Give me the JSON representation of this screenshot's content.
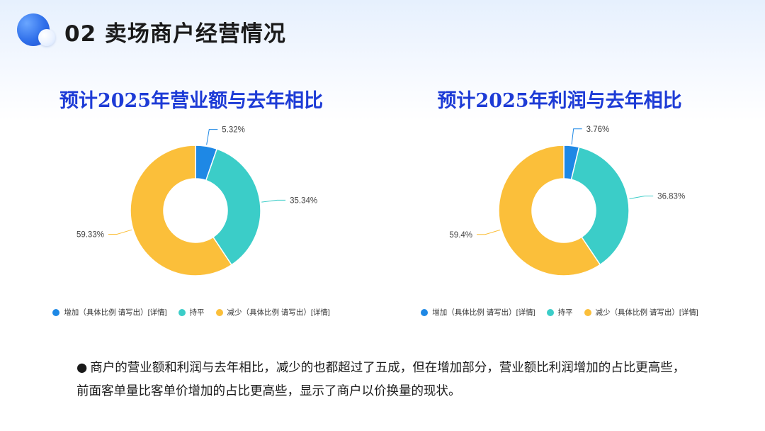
{
  "header": {
    "title": "02 卖场商户经营情况"
  },
  "colors": {
    "increase": "#1e88e5",
    "flat": "#3bcdc8",
    "decrease": "#fbbf3a",
    "title_blue": "#1d3bd6"
  },
  "chart_data": [
    {
      "type": "pie",
      "donut": true,
      "title": "预计2025年营业额与去年相比",
      "categories": [
        "增加（具体比例 请写出）[详情]",
        "持平",
        "减少（具体比例 请写出）[详情]"
      ],
      "values": [
        5.32,
        35.34,
        59.33
      ],
      "labels": [
        "5.32%",
        "35.34%",
        "59.33%"
      ],
      "legend_position": "bottom"
    },
    {
      "type": "pie",
      "donut": true,
      "title": "预计2025年利润与去年相比",
      "categories": [
        "增加（具体比例 请写出）[详情]",
        "持平",
        "减少（具体比例 请写出）[详情]"
      ],
      "values": [
        3.76,
        36.83,
        59.4
      ],
      "labels": [
        "3.76%",
        "36.83%",
        "59.4%"
      ],
      "legend_position": "bottom"
    }
  ],
  "legend": {
    "increase": "增加（具体比例 请写出）[详情]",
    "flat": "持平",
    "decrease": "减少（具体比例 请写出）[详情]"
  },
  "summary": {
    "bullet": "●",
    "text": "商户的营业额和利润与去年相比，减少的也都超过了五成，但在增加部分，营业额比利润增加的占比更高些，前面客单量比客单价增加的占比更高些，显示了商户以价换量的现状。"
  }
}
